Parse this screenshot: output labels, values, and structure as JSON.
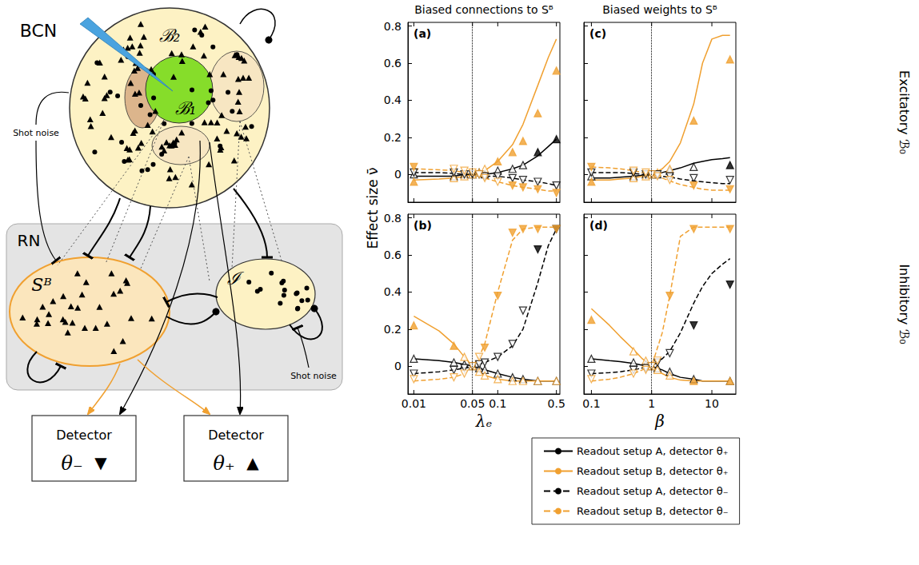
{
  "chart_data": [
    {
      "type": "line",
      "title": "(a)",
      "log": "x",
      "grid": false,
      "tick_labels": "y",
      "xlim": [
        0.0085,
        0.55
      ],
      "xticks": [
        0.01,
        0.05,
        0.1,
        0.5
      ],
      "ylim": [
        -0.15,
        0.82
      ],
      "yticks": [
        0,
        0.2,
        0.4,
        0.6,
        0.8
      ],
      "reference_x": 0.05,
      "x": [
        0.01,
        0.02,
        0.03,
        0.04,
        0.05,
        0.06,
        0.07,
        0.1,
        0.15,
        0.2,
        0.3,
        0.4,
        0.5
      ],
      "points_x": [
        0.01,
        0.03,
        0.04,
        0.05,
        0.06,
        0.07,
        0.1,
        0.15,
        0.2,
        0.3,
        0.5
      ],
      "series": [
        {
          "name": "Readout setup A, detector θ₊",
          "color": "#000000",
          "line_style": "solid",
          "marker": "triangle-up",
          "values": [
            -0.01,
            -0.01,
            -0.01,
            0,
            0,
            0,
            0,
            0.01,
            0.03,
            0.05,
            0.1,
            0.15,
            0.19
          ],
          "points": [
            0,
            -0.01,
            0,
            0,
            0.01,
            0,
            0.02,
            0.03,
            0.05,
            0.12,
            0.19
          ],
          "filled": [
            false,
            false,
            false,
            false,
            false,
            false,
            false,
            false,
            false,
            true,
            true
          ]
        },
        {
          "name": "Readout setup B, detector θ₊",
          "color": "#f0a030",
          "line_style": "solid",
          "marker": "triangle-up",
          "values": [
            -0.03,
            -0.025,
            -0.02,
            -0.01,
            0,
            0.01,
            0.02,
            0.07,
            0.16,
            0.27,
            0.48,
            0.63,
            0.73
          ],
          "points": [
            -0.04,
            -0.02,
            -0.01,
            0,
            0.01,
            0.03,
            0.07,
            0.12,
            0.18,
            0.33,
            0.56
          ],
          "filled": [
            true,
            false,
            false,
            false,
            false,
            false,
            true,
            true,
            true,
            true,
            true
          ]
        },
        {
          "name": "Readout setup A, detector θ₋",
          "color": "#000000",
          "line_style": "dashed",
          "marker": "triangle-down",
          "values": [
            0.01,
            0.01,
            0.005,
            0,
            0,
            -0.005,
            -0.01,
            -0.01,
            -0.02,
            -0.03,
            -0.04,
            -0.05,
            -0.06
          ],
          "points": [
            0.01,
            0.01,
            0,
            0,
            0,
            -0.01,
            -0.01,
            -0.02,
            -0.03,
            -0.04,
            -0.06
          ],
          "filled": [
            false,
            false,
            false,
            false,
            false,
            false,
            false,
            false,
            false,
            false,
            false
          ]
        },
        {
          "name": "Readout setup B, detector θ₋",
          "color": "#f0a030",
          "line_style": "dashed",
          "marker": "triangle-down",
          "values": [
            0.03,
            0.025,
            0.02,
            0.01,
            0,
            -0.01,
            -0.02,
            -0.04,
            -0.06,
            -0.07,
            -0.08,
            -0.09,
            -0.09
          ],
          "points": [
            0.04,
            0.03,
            0.02,
            0.01,
            0,
            -0.02,
            -0.04,
            -0.06,
            -0.07,
            -0.08,
            -0.1
          ],
          "filled": [
            true,
            false,
            false,
            false,
            false,
            false,
            false,
            true,
            true,
            true,
            true
          ]
        }
      ]
    },
    {
      "type": "line",
      "title": "(b)",
      "xlabel": "λₑ",
      "log": "x",
      "grid": false,
      "tick_labels": true,
      "xlim": [
        0.0085,
        0.55
      ],
      "xticks": [
        0.01,
        0.05,
        0.1,
        0.5
      ],
      "ylim": [
        -0.15,
        0.82
      ],
      "yticks": [
        0,
        0.2,
        0.4,
        0.6,
        0.8
      ],
      "reference_x": 0.05,
      "x": [
        0.01,
        0.02,
        0.03,
        0.04,
        0.05,
        0.06,
        0.07,
        0.1,
        0.15,
        0.2,
        0.3,
        0.4,
        0.5
      ],
      "points_x": [
        0.01,
        0.03,
        0.04,
        0.05,
        0.06,
        0.07,
        0.1,
        0.15,
        0.2,
        0.3,
        0.5
      ],
      "series": [
        {
          "name": "Readout setup A, detector θ₊",
          "color": "#000000",
          "line_style": "solid",
          "marker": "triangle-up",
          "values": [
            0.04,
            0.03,
            0.02,
            0.01,
            0,
            -0.01,
            -0.02,
            -0.04,
            -0.06,
            -0.07,
            -0.08,
            -0.08,
            -0.08
          ],
          "points": [
            0.04,
            0.02,
            0.01,
            0,
            -0.01,
            -0.02,
            -0.04,
            -0.06,
            -0.07,
            -0.08,
            -0.08
          ],
          "filled": [
            false,
            false,
            false,
            false,
            false,
            false,
            false,
            false,
            false,
            false,
            false
          ]
        },
        {
          "name": "Readout setup B, detector θ₊",
          "color": "#f0a030",
          "line_style": "solid",
          "marker": "triangle-up",
          "values": [
            0.27,
            0.19,
            0.12,
            0.05,
            0,
            -0.03,
            -0.05,
            -0.07,
            -0.08,
            -0.08,
            -0.08,
            -0.08,
            -0.08
          ],
          "points": [
            0.22,
            0.11,
            0.05,
            0,
            -0.03,
            -0.05,
            -0.07,
            -0.08,
            -0.08,
            -0.08,
            -0.08
          ],
          "filled": [
            true,
            true,
            false,
            false,
            false,
            false,
            false,
            false,
            false,
            false,
            false
          ]
        },
        {
          "name": "Readout setup A, detector θ₋",
          "color": "#000000",
          "line_style": "dashed",
          "marker": "triangle-down",
          "values": [
            -0.04,
            -0.03,
            -0.02,
            -0.01,
            0,
            0.01,
            0.02,
            0.05,
            0.11,
            0.2,
            0.45,
            0.65,
            0.74
          ],
          "points": [
            -0.04,
            -0.02,
            -0.01,
            0,
            0.01,
            0.02,
            0.05,
            0.12,
            0.3,
            0.63,
            0.74
          ],
          "filled": [
            false,
            false,
            false,
            false,
            false,
            false,
            false,
            false,
            false,
            true,
            true
          ]
        },
        {
          "name": "Readout setup B, detector θ₋",
          "color": "#f0a030",
          "line_style": "dashed",
          "marker": "triangle-down",
          "values": [
            -0.08,
            -0.07,
            -0.06,
            -0.04,
            0,
            0.05,
            0.12,
            0.4,
            0.68,
            0.74,
            0.75,
            0.75,
            0.75
          ],
          "points": [
            -0.07,
            -0.06,
            -0.04,
            0,
            0.05,
            0.1,
            0.38,
            0.72,
            0.74,
            0.74,
            0.74
          ],
          "filled": [
            false,
            false,
            false,
            false,
            false,
            true,
            true,
            true,
            true,
            true,
            true
          ]
        }
      ]
    },
    {
      "type": "line",
      "title": "(c)",
      "log": "x",
      "grid": false,
      "tick_labels": false,
      "xlim": [
        0.075,
        25
      ],
      "xticks": [
        0.1,
        1,
        10
      ],
      "ylim": [
        -0.15,
        0.82
      ],
      "yticks": [
        0,
        0.2,
        0.4,
        0.6,
        0.8
      ],
      "reference_x": 1,
      "x": [
        0.1,
        0.2,
        0.3,
        0.5,
        0.7,
        1,
        1.5,
        2,
        3,
        5,
        7,
        10,
        15,
        20
      ],
      "points_x": [
        0.1,
        0.5,
        0.8,
        1,
        1.25,
        2,
        5,
        20
      ],
      "series": [
        {
          "name": "Readout setup A, detector θ₊",
          "color": "#000000",
          "line_style": "solid",
          "marker": "triangle-up",
          "values": [
            -0.02,
            -0.02,
            -0.015,
            -0.01,
            -0.005,
            0,
            0.01,
            0.02,
            0.035,
            0.06,
            0.07,
            0.08,
            0.085,
            0.09
          ],
          "points": [
            -0.01,
            -0.01,
            0,
            0,
            0,
            0.02,
            0.04,
            0.05
          ],
          "filled": [
            false,
            false,
            false,
            false,
            false,
            false,
            false,
            true
          ]
        },
        {
          "name": "Readout setup B, detector θ₊",
          "color": "#f0a030",
          "line_style": "solid",
          "marker": "triangle-up",
          "values": [
            -0.03,
            -0.03,
            -0.025,
            -0.02,
            -0.01,
            0,
            0.03,
            0.07,
            0.17,
            0.38,
            0.6,
            0.73,
            0.75,
            0.75
          ],
          "points": [
            -0.04,
            -0.02,
            -0.01,
            0,
            0.01,
            0.03,
            0.29,
            0.62
          ],
          "filled": [
            true,
            false,
            false,
            false,
            false,
            false,
            true,
            true
          ]
        },
        {
          "name": "Readout setup A, detector θ₋",
          "color": "#000000",
          "line_style": "dashed",
          "marker": "triangle-down",
          "values": [
            0.01,
            0.01,
            0.01,
            0.005,
            0,
            0,
            -0.01,
            -0.015,
            -0.025,
            -0.035,
            -0.04,
            -0.045,
            -0.05,
            -0.05
          ],
          "points": [
            0.01,
            0.01,
            0,
            0,
            0,
            -0.01,
            -0.02,
            -0.03
          ],
          "filled": [
            false,
            false,
            false,
            false,
            false,
            false,
            false,
            false
          ]
        },
        {
          "name": "Readout setup B, detector θ₋",
          "color": "#f0a030",
          "line_style": "dashed",
          "marker": "triangle-down",
          "values": [
            0.04,
            0.035,
            0.03,
            0.02,
            0.01,
            0,
            -0.02,
            -0.035,
            -0.055,
            -0.07,
            -0.08,
            -0.085,
            -0.085,
            -0.085
          ],
          "points": [
            0.04,
            0.02,
            0.01,
            0,
            -0.01,
            -0.03,
            -0.06,
            -0.08
          ],
          "filled": [
            true,
            false,
            false,
            false,
            false,
            false,
            true,
            true
          ]
        }
      ]
    },
    {
      "type": "line",
      "title": "(d)",
      "xlabel": "β",
      "log": "x",
      "grid": false,
      "tick_labels": "x",
      "xlim": [
        0.075,
        25
      ],
      "xticks": [
        0.1,
        1,
        10
      ],
      "ylim": [
        -0.15,
        0.82
      ],
      "yticks": [
        0,
        0.2,
        0.4,
        0.6,
        0.8
      ],
      "reference_x": 1,
      "x": [
        0.1,
        0.2,
        0.3,
        0.5,
        0.7,
        1,
        1.5,
        2,
        3,
        5,
        7,
        10,
        15,
        20
      ],
      "points_x": [
        0.1,
        0.5,
        0.8,
        1,
        1.25,
        2,
        5,
        20
      ],
      "series": [
        {
          "name": "Readout setup A, detector θ₊",
          "color": "#000000",
          "line_style": "solid",
          "marker": "triangle-up",
          "values": [
            0.04,
            0.03,
            0.025,
            0.015,
            0.005,
            0,
            -0.02,
            -0.04,
            -0.06,
            -0.07,
            -0.08,
            -0.08,
            -0.08,
            -0.08
          ],
          "points": [
            0.04,
            0.02,
            0.01,
            0,
            -0.01,
            -0.03,
            -0.07,
            -0.08
          ],
          "filled": [
            false,
            false,
            false,
            false,
            false,
            false,
            false,
            false
          ]
        },
        {
          "name": "Readout setup B, detector θ₊",
          "color": "#f0a030",
          "line_style": "solid",
          "marker": "triangle-up",
          "values": [
            0.31,
            0.22,
            0.16,
            0.09,
            0.04,
            0,
            -0.04,
            -0.06,
            -0.075,
            -0.08,
            -0.08,
            -0.08,
            -0.08,
            -0.08
          ],
          "points": [
            0.25,
            0.08,
            0.03,
            0,
            -0.02,
            -0.05,
            -0.08,
            -0.08
          ],
          "filled": [
            true,
            false,
            false,
            false,
            false,
            false,
            true,
            true
          ]
        },
        {
          "name": "Readout setup A, detector θ₋",
          "color": "#000000",
          "line_style": "dashed",
          "marker": "triangle-down",
          "values": [
            -0.04,
            -0.035,
            -0.03,
            -0.02,
            -0.01,
            0,
            0.04,
            0.08,
            0.18,
            0.34,
            0.43,
            0.5,
            0.55,
            0.58
          ],
          "points": [
            -0.04,
            -0.02,
            -0.01,
            0,
            0.02,
            0.07,
            0.22,
            0.44
          ],
          "filled": [
            false,
            false,
            false,
            false,
            false,
            false,
            true,
            true
          ]
        },
        {
          "name": "Readout setup B, detector θ₋",
          "color": "#f0a030",
          "line_style": "dashed",
          "marker": "triangle-down",
          "values": [
            -0.08,
            -0.07,
            -0.06,
            -0.04,
            -0.02,
            0,
            0.18,
            0.38,
            0.7,
            0.75,
            0.75,
            0.75,
            0.75,
            0.75
          ],
          "points": [
            -0.07,
            -0.04,
            -0.02,
            0,
            0.03,
            0.38,
            0.74,
            0.74
          ],
          "filled": [
            false,
            false,
            false,
            false,
            false,
            true,
            true,
            true
          ]
        }
      ]
    }
  ],
  "y_label": "Effect size ν̄",
  "column_titles": [
    "Biased connections to Sᴮ",
    "Biased weights to Sᴮ"
  ],
  "row_labels": [
    "Excitatory ℬ₀",
    "Inhibitory ℬ₀"
  ],
  "legend": "bottom",
  "diagram": {
    "networks": [
      {
        "label": "BCN",
        "regions": [
          "ℬ₁",
          "ℬ₂"
        ]
      },
      {
        "label": "RN",
        "populations": [
          "Sᴮ",
          "ℐ"
        ]
      }
    ],
    "shot_noise": [
      "Shot noise",
      "Shot noise"
    ],
    "detectors": [
      {
        "label": "Detector",
        "threshold": "θ₋",
        "symbol": "▼"
      },
      {
        "label": "Detector",
        "threshold": "θ₊",
        "symbol": "▲"
      }
    ]
  }
}
